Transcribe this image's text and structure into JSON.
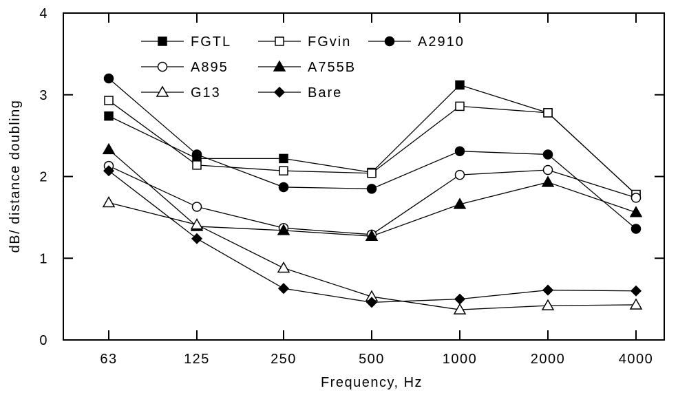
{
  "chart_data": {
    "type": "line",
    "xlabel": "Frequency, Hz",
    "ylabel": "dB/ distance doubling",
    "categories": [
      "63",
      "125",
      "250",
      "500",
      "1000",
      "2000",
      "4000"
    ],
    "ylim": [
      0,
      4
    ],
    "yticks": [
      0,
      1,
      2,
      3,
      4
    ],
    "grid": false,
    "legend_position": "top-left",
    "series": [
      {
        "name": "FGTL",
        "marker": "square",
        "filled": true,
        "values": [
          2.74,
          2.22,
          2.22,
          2.05,
          3.12,
          2.78,
          1.78
        ]
      },
      {
        "name": "FGvin",
        "marker": "square",
        "filled": false,
        "values": [
          2.93,
          2.14,
          2.07,
          2.04,
          2.86,
          2.78,
          1.78
        ]
      },
      {
        "name": "A2910",
        "marker": "circle",
        "filled": true,
        "values": [
          3.2,
          2.27,
          1.87,
          1.85,
          2.31,
          2.27,
          1.36
        ]
      },
      {
        "name": "A895",
        "marker": "circle",
        "filled": false,
        "values": [
          2.13,
          1.63,
          1.37,
          1.29,
          2.02,
          2.08,
          1.74
        ]
      },
      {
        "name": "A755B",
        "marker": "triangle",
        "filled": true,
        "values": [
          2.33,
          1.39,
          1.34,
          1.27,
          1.66,
          1.93,
          1.56
        ]
      },
      {
        "name": "G13",
        "marker": "triangle",
        "filled": false,
        "values": [
          1.68,
          1.41,
          0.88,
          0.53,
          0.37,
          0.42,
          0.43
        ]
      },
      {
        "name": "Bare",
        "marker": "diamond",
        "filled": true,
        "values": [
          2.07,
          1.24,
          0.63,
          0.46,
          0.5,
          0.61,
          0.6
        ]
      }
    ]
  }
}
